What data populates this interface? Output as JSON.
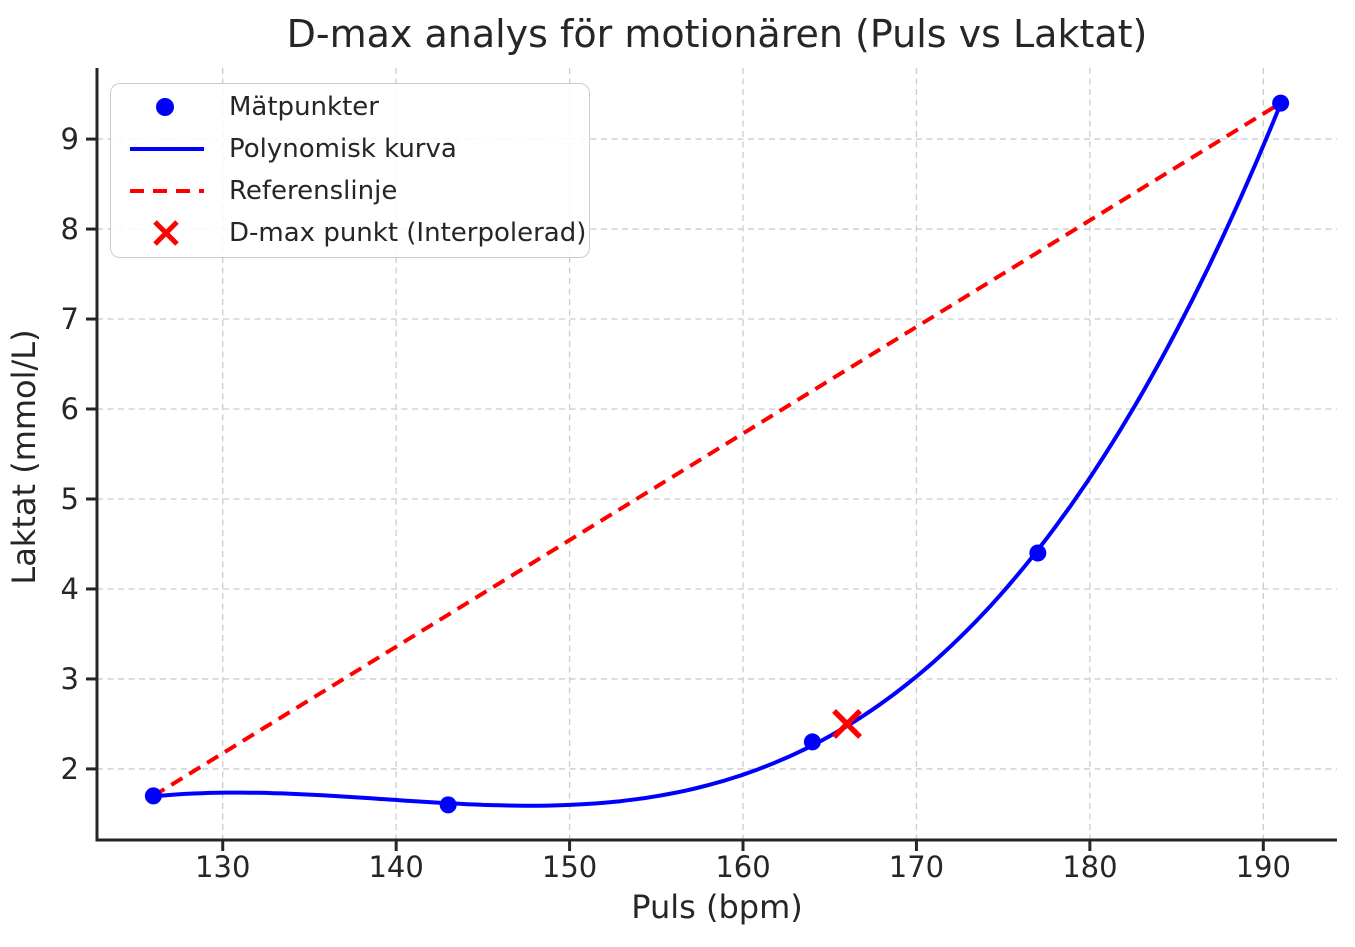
{
  "chart_data": {
    "type": "scatter+line",
    "title": "D-max analys för motionären (Puls vs Laktat)",
    "xlabel": "Puls (bpm)",
    "ylabel": "Laktat (mmol/L)",
    "xlim": [
      122.75,
      194.25
    ],
    "ylim": [
      1.21,
      9.79
    ],
    "x_ticks": [
      130,
      140,
      150,
      160,
      170,
      180,
      190
    ],
    "y_ticks": [
      2,
      3,
      4,
      5,
      6,
      7,
      8,
      9
    ],
    "grid": true,
    "grid_style": "dashed",
    "series": [
      {
        "name": "Mätpunkter",
        "type": "scatter",
        "x": [
          126,
          143,
          164,
          177,
          191
        ],
        "y": [
          1.7,
          1.6,
          2.3,
          4.4,
          9.4
        ]
      },
      {
        "name": "Polynomisk kurva",
        "type": "polynomial-fit",
        "fit_degree": 3,
        "x_range": [
          126,
          191
        ]
      },
      {
        "name": "Referenslinje",
        "type": "dashed-line",
        "from": [
          126,
          1.7
        ],
        "to": [
          191,
          9.4
        ]
      },
      {
        "name": "D-max punkt (Interpolerad)",
        "type": "x-marker",
        "x": 166,
        "y": 2.5
      }
    ],
    "legend": {
      "position": "upper-left",
      "entries": [
        "Mätpunkter",
        "Polynomisk kurva",
        "Referenslinje",
        "D-max punkt (Interpolerad)"
      ]
    },
    "colors": {
      "points": "#0000ff",
      "curve": "#0000ff",
      "reference": "#ff0000",
      "dmax": "#ff0000",
      "grid": "#cccccc",
      "text": "#262626",
      "spine": "#262626"
    }
  }
}
